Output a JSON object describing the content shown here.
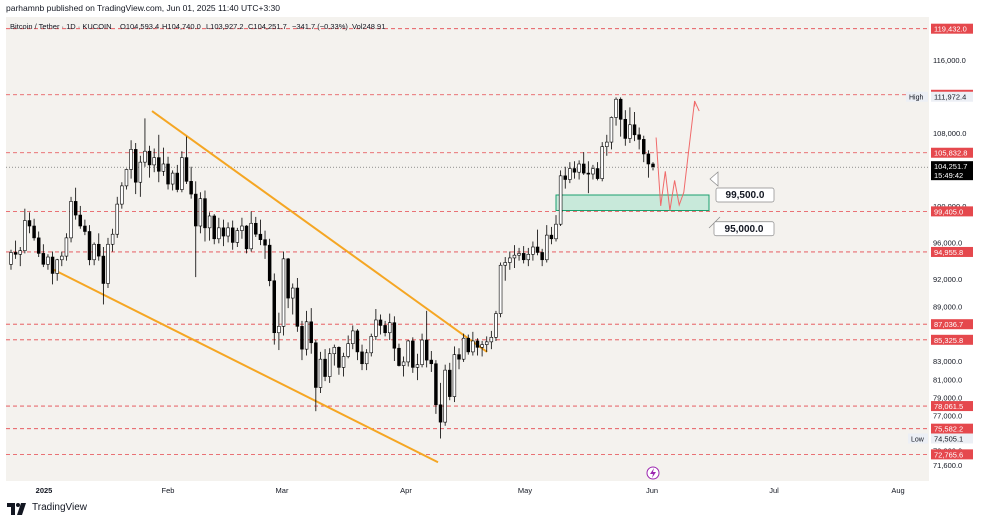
{
  "header": {
    "publisher": "parhamnb published on TradingView.com, Jun 01, 2025 11:40 UTC+3:30",
    "symbol_line": "Bitcoin / Tether · 1D · KUCOIN",
    "open": "O104,593.4",
    "high": "H104,740.0",
    "low": "L103,927.2",
    "close": "C104,251.7",
    "change": "−341.7 (−0.33%)",
    "volume": "Vol248.91"
  },
  "footer": {
    "brand": "TradingView"
  },
  "colors": {
    "background": "#f4f2ee",
    "up": "#ffffff",
    "down": "#000000",
    "channel": "#f5a623",
    "support_line": "#e5484d",
    "zone_fill": "#bfe8d6",
    "zone_border": "#1aa06d",
    "forecast": "#f06a6a",
    "current_price": "#000000"
  },
  "chart_data": {
    "type": "candlestick",
    "x_ticks": [
      "2025",
      "Feb",
      "Mar",
      "Apr",
      "May",
      "Jun",
      "Jul",
      "Aug"
    ],
    "y_ticks": [
      "116,000.0",
      "108,000.0",
      "100,000.0",
      "96,000.0",
      "92,000.0",
      "89,000.0",
      "83,000.0",
      "81,000.0",
      "79,000.0",
      "77,000.0",
      "73,200.0",
      "71,600.0"
    ],
    "y_range": [
      70800,
      121000
    ],
    "horizontal_levels": [
      {
        "label": "119,432.0",
        "value": 119432
      },
      {
        "label": "112,186.9",
        "value": 112186.9
      },
      {
        "label": "105,832.8",
        "value": 105832.8
      },
      {
        "label": "99,405.0",
        "value": 99405
      },
      {
        "label": "94,955.8",
        "value": 94955.8
      },
      {
        "label": "87,036.7",
        "value": 87036.7
      },
      {
        "label": "85,325.8",
        "value": 85325.8
      },
      {
        "label": "78,061.5",
        "value": 78061.5
      },
      {
        "label": "75,582.2",
        "value": 75582.2
      },
      {
        "label": "72,765.6",
        "value": 72765.6
      }
    ],
    "high_marker": {
      "label": "High",
      "value_label": "111,972.4",
      "value": 111972.4
    },
    "low_marker": {
      "label": "Low",
      "value_label": "74,505.1",
      "value": 74505.1
    },
    "current_price": {
      "value": 104251.7,
      "label": "104,251.7",
      "countdown": "15:49:42"
    },
    "zone": {
      "from": 99500,
      "to": 101200,
      "label": "99,500.0"
    },
    "callouts": [
      {
        "label": "99,500.0",
        "value": 101200
      },
      {
        "label": "95,000.0",
        "value": 97500
      }
    ],
    "candles": [
      [
        93600,
        95200,
        93000,
        94900
      ],
      [
        94900,
        96200,
        94200,
        94700
      ],
      [
        94700,
        95500,
        93400,
        95100
      ],
      [
        95100,
        99700,
        94800,
        98400
      ],
      [
        98400,
        99300,
        97000,
        97800
      ],
      [
        97800,
        98600,
        96200,
        96500
      ],
      [
        96500,
        97200,
        94400,
        94800
      ],
      [
        94800,
        95800,
        93300,
        93600
      ],
      [
        93600,
        94700,
        93000,
        94400
      ],
      [
        94400,
        95000,
        91400,
        92600
      ],
      [
        92600,
        94200,
        91800,
        94100
      ],
      [
        94100,
        95000,
        93400,
        94500
      ],
      [
        94500,
        97000,
        94000,
        96500
      ],
      [
        96500,
        101000,
        96000,
        100500
      ],
      [
        100500,
        102000,
        98500,
        99000
      ],
      [
        99000,
        100000,
        97500,
        97800
      ],
      [
        97800,
        98500,
        96800,
        97200
      ],
      [
        97200,
        97900,
        93500,
        94100
      ],
      [
        94100,
        96000,
        93500,
        95800
      ],
      [
        95800,
        97000,
        94000,
        94500
      ],
      [
        94500,
        95500,
        89200,
        91500
      ],
      [
        91500,
        96500,
        91000,
        95800
      ],
      [
        95800,
        97500,
        95000,
        96900
      ],
      [
        96900,
        101000,
        96500,
        100200
      ],
      [
        100200,
        102600,
        99700,
        102200
      ],
      [
        102200,
        104100,
        101800,
        104000
      ],
      [
        104000,
        107200,
        103000,
        106200
      ],
      [
        106200,
        106900,
        101300,
        102600
      ],
      [
        102600,
        105500,
        101000,
        104800
      ],
      [
        104800,
        109600,
        104300,
        106000
      ],
      [
        106000,
        106600,
        103100,
        104500
      ],
      [
        104500,
        106300,
        103700,
        105300
      ],
      [
        105300,
        107800,
        102600,
        103800
      ],
      [
        103800,
        106400,
        103300,
        104600
      ],
      [
        104600,
        105400,
        101800,
        102400
      ],
      [
        102400,
        103900,
        101700,
        103600
      ],
      [
        103600,
        104500,
        101500,
        101800
      ],
      [
        101800,
        106000,
        101500,
        105300
      ],
      [
        105300,
        107600,
        102400,
        102700
      ],
      [
        102700,
        104300,
        100800,
        101300
      ],
      [
        101300,
        102700,
        92200,
        97800
      ],
      [
        97800,
        101500,
        97000,
        100800
      ],
      [
        100800,
        101700,
        96100,
        97600
      ],
      [
        97600,
        99300,
        96200,
        98900
      ],
      [
        98900,
        99100,
        95800,
        96400
      ],
      [
        96400,
        98700,
        95900,
        97600
      ],
      [
        97600,
        98500,
        95600,
        96700
      ],
      [
        96700,
        98200,
        96000,
        97600
      ],
      [
        97600,
        98400,
        95200,
        96000
      ],
      [
        96000,
        97600,
        95500,
        97300
      ],
      [
        97300,
        98700,
        96400,
        97800
      ],
      [
        97800,
        97900,
        94800,
        95300
      ],
      [
        95300,
        99400,
        95000,
        98100
      ],
      [
        98100,
        98800,
        96600,
        96900
      ],
      [
        96900,
        98500,
        95700,
        96300
      ],
      [
        96300,
        97300,
        94200,
        95700
      ],
      [
        95700,
        96400,
        91200,
        91800
      ],
      [
        91800,
        92600,
        84800,
        86100
      ],
      [
        86100,
        88300,
        84200,
        86800
      ],
      [
        86800,
        95000,
        85800,
        94200
      ],
      [
        94200,
        94300,
        88800,
        89900
      ],
      [
        89900,
        91500,
        88100,
        91000
      ],
      [
        91000,
        92100,
        86200,
        86800
      ],
      [
        86800,
        87400,
        83100,
        84300
      ],
      [
        84300,
        88500,
        83600,
        87300
      ],
      [
        87300,
        88800,
        83800,
        85000
      ],
      [
        85000,
        85300,
        77500,
        80100
      ],
      [
        80100,
        84000,
        79500,
        83200
      ],
      [
        83200,
        84300,
        80800,
        81300
      ],
      [
        81300,
        84400,
        80600,
        83800
      ],
      [
        83800,
        84800,
        82500,
        84500
      ],
      [
        84500,
        84600,
        81500,
        82300
      ],
      [
        82300,
        83900,
        81300,
        83500
      ],
      [
        83500,
        85800,
        83300,
        84900
      ],
      [
        84900,
        86900,
        84300,
        86300
      ],
      [
        86300,
        86500,
        83100,
        84000
      ],
      [
        84000,
        84800,
        82000,
        82700
      ],
      [
        82700,
        84300,
        82000,
        83900
      ],
      [
        83900,
        86000,
        83500,
        85700
      ],
      [
        85700,
        88700,
        85300,
        87500
      ],
      [
        87500,
        88100,
        85900,
        86900
      ],
      [
        86900,
        87400,
        85700,
        86100
      ],
      [
        86100,
        88200,
        85300,
        87200
      ],
      [
        87200,
        87900,
        83000,
        84400
      ],
      [
        84400,
        84900,
        82400,
        82500
      ],
      [
        82500,
        83500,
        81300,
        82900
      ],
      [
        82900,
        85300,
        82400,
        85200
      ],
      [
        85200,
        85600,
        81700,
        82300
      ],
      [
        82300,
        83800,
        80900,
        82600
      ],
      [
        82600,
        86000,
        82300,
        85300
      ],
      [
        85300,
        88500,
        82300,
        83100
      ],
      [
        83100,
        84100,
        81800,
        82700
      ],
      [
        82700,
        83100,
        77200,
        78200
      ],
      [
        78200,
        80600,
        74500,
        76300
      ],
      [
        76300,
        82600,
        75900,
        82000
      ],
      [
        82000,
        82800,
        78700,
        79100
      ],
      [
        79100,
        84600,
        78500,
        83700
      ],
      [
        83700,
        84400,
        82100,
        83200
      ],
      [
        83200,
        86000,
        82900,
        85500
      ],
      [
        85500,
        85900,
        83700,
        84000
      ],
      [
        84000,
        86200,
        83600,
        85200
      ],
      [
        85200,
        85500,
        83600,
        84500
      ],
      [
        84500,
        85200,
        83500,
        84800
      ],
      [
        84800,
        85700,
        84000,
        85100
      ],
      [
        85100,
        86300,
        84300,
        85600
      ],
      [
        85600,
        88500,
        85200,
        88200
      ],
      [
        88200,
        93800,
        87800,
        93500
      ],
      [
        93500,
        94400,
        91800,
        93800
      ],
      [
        93800,
        95000,
        93000,
        94300
      ],
      [
        94300,
        95700,
        93200,
        94600
      ],
      [
        94600,
        95400,
        94000,
        94800
      ],
      [
        94800,
        95600,
        93700,
        94100
      ],
      [
        94100,
        95400,
        93400,
        94700
      ],
      [
        94700,
        96100,
        94000,
        95500
      ],
      [
        95500,
        97400,
        94600,
        94900
      ],
      [
        94900,
        95300,
        93400,
        94100
      ],
      [
        94100,
        97900,
        93800,
        96800
      ],
      [
        96800,
        97700,
        95800,
        96400
      ],
      [
        96400,
        99000,
        96100,
        98000
      ],
      [
        98000,
        103900,
        97800,
        103300
      ],
      [
        103300,
        104300,
        101900,
        102900
      ],
      [
        102900,
        104800,
        102500,
        104100
      ],
      [
        104100,
        104900,
        103000,
        103700
      ],
      [
        103700,
        105000,
        102900,
        104600
      ],
      [
        104600,
        105900,
        103400,
        103600
      ],
      [
        103600,
        104900,
        101400,
        103500
      ],
      [
        103500,
        104500,
        102900,
        104100
      ],
      [
        104100,
        104800,
        102800,
        103000
      ],
      [
        103000,
        107000,
        102700,
        106500
      ],
      [
        106500,
        107800,
        105500,
        107000
      ],
      [
        107000,
        109800,
        106200,
        109700
      ],
      [
        109700,
        111900,
        108800,
        111700
      ],
      [
        111700,
        111900,
        107600,
        109500
      ],
      [
        109500,
        110500,
        106600,
        107400
      ],
      [
        107400,
        110800,
        106900,
        108900
      ],
      [
        108900,
        110300,
        107100,
        107800
      ],
      [
        107800,
        108600,
        106200,
        107300
      ],
      [
        107300,
        107700,
        104800,
        105700
      ],
      [
        105700,
        106100,
        103100,
        104600
      ],
      [
        104600,
        104800,
        103900,
        104300
      ]
    ],
    "projection": [
      [
        105000,
        107500
      ],
      [
        105600,
        100000
      ],
      [
        106200,
        103800
      ],
      [
        106800,
        99500
      ],
      [
        107400,
        102800
      ],
      [
        108000,
        100100
      ],
      [
        108600,
        101500
      ],
      [
        109200,
        105800
      ],
      [
        110000,
        111500
      ],
      [
        110600,
        110400
      ],
      [
        110000,
        110900
      ],
      [
        109700,
        111700
      ]
    ]
  }
}
